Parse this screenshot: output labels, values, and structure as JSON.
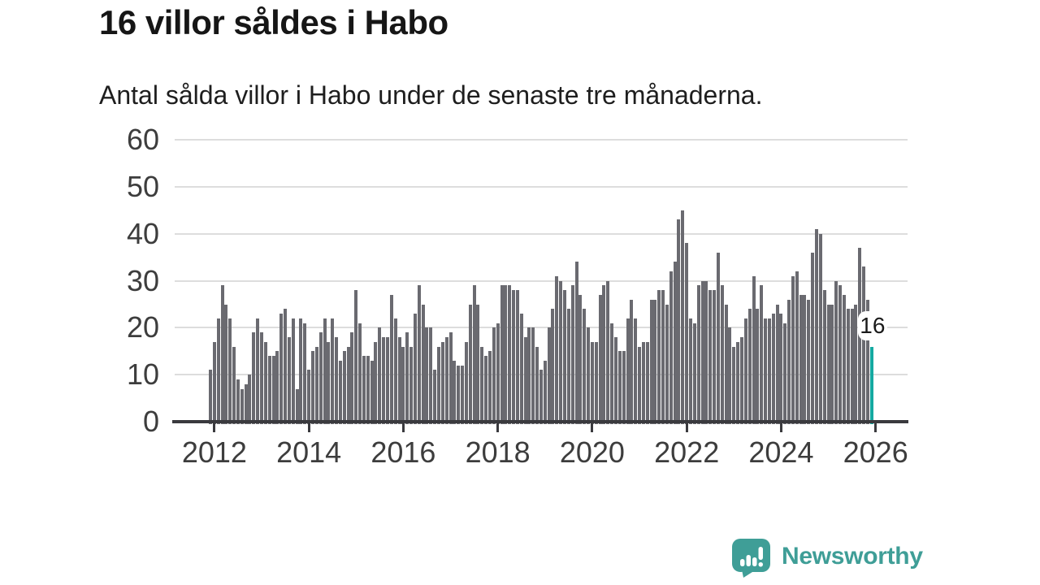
{
  "header": {
    "title": "16 villor såldes i Habo",
    "subtitle": "Antal sålda villor i Habo under de senaste tre månaderna."
  },
  "footer": {
    "brand": "Newsworthy"
  },
  "colors": {
    "bar": "#6a6a70",
    "highlight": "#15a9a1",
    "grid": "#dddddd",
    "axis": "#3a3a3e",
    "brand_teal": "#3f9e97",
    "background": "#ffffff"
  },
  "chart_data": {
    "type": "bar",
    "title": "16 villor såldes i Habo",
    "subtitle": "Antal sålda villor i Habo under de senaste tre månaderna.",
    "frequency": "monthly",
    "series_start": "2011-12",
    "series_end": "2025-12",
    "x_axis": {
      "tick_labels": [
        "2012",
        "2014",
        "2016",
        "2018",
        "2020",
        "2022",
        "2024",
        "2026"
      ]
    },
    "y_axis": {
      "ticks": [
        0,
        10,
        20,
        30,
        40,
        50,
        60
      ],
      "min": 0,
      "max": 60,
      "grid": true
    },
    "values": [
      11,
      17,
      22,
      29,
      25,
      22,
      16,
      9,
      7,
      8,
      10,
      19,
      22,
      19,
      17,
      14,
      14,
      15,
      23,
      24,
      18,
      22,
      7,
      22,
      21,
      11,
      15,
      16,
      19,
      22,
      17,
      22,
      18,
      13,
      15,
      16,
      19,
      28,
      21,
      14,
      14,
      13,
      17,
      20,
      18,
      18,
      27,
      22,
      18,
      16,
      19,
      16,
      23,
      29,
      25,
      20,
      20,
      11,
      16,
      17,
      18,
      19,
      13,
      12,
      12,
      17,
      25,
      29,
      25,
      16,
      14,
      15,
      20,
      21,
      29,
      29,
      29,
      28,
      28,
      23,
      18,
      20,
      20,
      16,
      11,
      13,
      20,
      24,
      31,
      30,
      28,
      24,
      29,
      34,
      27,
      24,
      20,
      17,
      17,
      27,
      29,
      30,
      21,
      18,
      15,
      15,
      22,
      26,
      22,
      16,
      17,
      17,
      26,
      26,
      28,
      28,
      25,
      32,
      34,
      43,
      45,
      38,
      22,
      21,
      29,
      30,
      30,
      28,
      28,
      36,
      29,
      25,
      20,
      16,
      17,
      18,
      22,
      24,
      31,
      24,
      29,
      22,
      22,
      23,
      25,
      23,
      21,
      26,
      31,
      32,
      27,
      27,
      26,
      36,
      41,
      40,
      28,
      25,
      25,
      30,
      29,
      27,
      24,
      24,
      25,
      37,
      33,
      26,
      16
    ],
    "highlight": {
      "index": 168,
      "value": 16,
      "label": "16",
      "color": "#15a9a1"
    },
    "legend": null
  }
}
